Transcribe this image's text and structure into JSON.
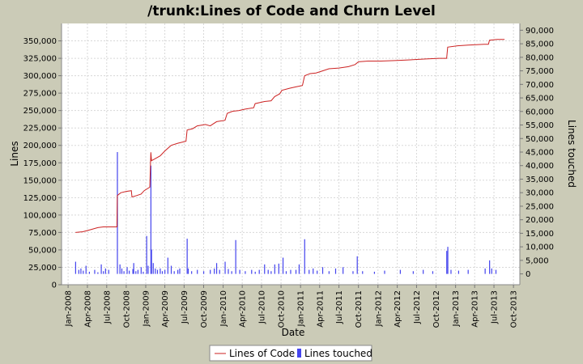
{
  "chart_data": {
    "type": "line",
    "title": "/trunk:Lines of Code and Churn Level",
    "xlabel": "Date",
    "ylabel": "Lines",
    "y2label": "Lines touched",
    "xlim": [
      "2007-12-01",
      "2013-10-31"
    ],
    "ylim": [
      0,
      375000
    ],
    "y2lim": [
      -4000,
      92500
    ],
    "x_ticks": [
      "Jan-2008",
      "Apr-2008",
      "Jul-2008",
      "Oct-2008",
      "Jan-2009",
      "Apr-2009",
      "Jul-2009",
      "Oct-2009",
      "Jan-2010",
      "Apr-2010",
      "Jul-2010",
      "Oct-2010",
      "Jan-2011",
      "Apr-2011",
      "Jul-2011",
      "Oct-2011",
      "Jan-2012",
      "Apr-2012",
      "Jul-2012",
      "Oct-2012",
      "Jan-2013",
      "Apr-2013",
      "Jul-2013",
      "Oct-2013"
    ],
    "y_ticks": [
      "0",
      "25,000",
      "50,000",
      "75,000",
      "100,000",
      "125,000",
      "150,000",
      "175,000",
      "200,000",
      "225,000",
      "250,000",
      "275,000",
      "300,000",
      "325,000",
      "350,000"
    ],
    "y2_ticks": [
      "0",
      "5,000",
      "10,000",
      "15,000",
      "20,000",
      "25,000",
      "30,000",
      "35,000",
      "40,000",
      "45,000",
      "50,000",
      "55,000",
      "60,000",
      "65,000",
      "70,000",
      "75,000",
      "80,000",
      "85,000",
      "90,000"
    ],
    "grid": true,
    "legend": "bottom",
    "series": [
      {
        "name": "Lines of Code",
        "axis": "left",
        "color": "#cc2222",
        "points": [
          [
            "2008-02-05",
            75000
          ],
          [
            "2008-03-10",
            76000
          ],
          [
            "2008-04-15",
            79000
          ],
          [
            "2008-05-20",
            82000
          ],
          [
            "2008-06-15",
            83000
          ],
          [
            "2008-07-15",
            83000
          ],
          [
            "2008-08-18",
            83000
          ],
          [
            "2008-08-20",
            128000
          ],
          [
            "2008-09-05",
            132000
          ],
          [
            "2008-10-01",
            134000
          ],
          [
            "2008-10-25",
            135000
          ],
          [
            "2008-10-28",
            126000
          ],
          [
            "2008-11-20",
            128000
          ],
          [
            "2008-12-10",
            130000
          ],
          [
            "2008-12-25",
            135000
          ],
          [
            "2009-01-20",
            140000
          ],
          [
            "2009-01-25",
            190000
          ],
          [
            "2009-01-28",
            178000
          ],
          [
            "2009-02-15",
            181000
          ],
          [
            "2009-03-10",
            185000
          ],
          [
            "2009-04-01",
            192000
          ],
          [
            "2009-05-01",
            200000
          ],
          [
            "2009-06-01",
            203000
          ],
          [
            "2009-07-10",
            206000
          ],
          [
            "2009-07-15",
            222000
          ],
          [
            "2009-08-10",
            224000
          ],
          [
            "2009-09-01",
            228000
          ],
          [
            "2009-10-10",
            230000
          ],
          [
            "2009-11-01",
            228000
          ],
          [
            "2009-12-01",
            234000
          ],
          [
            "2010-01-10",
            236000
          ],
          [
            "2010-01-20",
            246000
          ],
          [
            "2010-02-15",
            249000
          ],
          [
            "2010-03-15",
            250000
          ],
          [
            "2010-04-15",
            252000
          ],
          [
            "2010-05-25",
            254000
          ],
          [
            "2010-06-01",
            260000
          ],
          [
            "2010-07-15",
            263000
          ],
          [
            "2010-08-15",
            264000
          ],
          [
            "2010-09-01",
            270000
          ],
          [
            "2010-09-25",
            274000
          ],
          [
            "2010-10-05",
            279000
          ],
          [
            "2010-11-10",
            282000
          ],
          [
            "2010-12-10",
            284000
          ],
          [
            "2011-01-10",
            286000
          ],
          [
            "2011-01-20",
            300000
          ],
          [
            "2011-02-15",
            303000
          ],
          [
            "2011-03-15",
            304000
          ],
          [
            "2011-04-15",
            307000
          ],
          [
            "2011-05-15",
            310000
          ],
          [
            "2011-07-01",
            311000
          ],
          [
            "2011-08-15",
            313000
          ],
          [
            "2011-09-15",
            316000
          ],
          [
            "2011-10-01",
            320000
          ],
          [
            "2011-11-15",
            321000
          ],
          [
            "2012-01-15",
            321000
          ],
          [
            "2012-04-01",
            322000
          ],
          [
            "2012-06-15",
            323000
          ],
          [
            "2012-08-15",
            324000
          ],
          [
            "2012-10-15",
            325000
          ],
          [
            "2012-11-20",
            325000
          ],
          [
            "2012-11-25",
            341000
          ],
          [
            "2013-01-10",
            343000
          ],
          [
            "2013-03-01",
            344000
          ],
          [
            "2013-05-15",
            345000
          ],
          [
            "2013-06-05",
            345000
          ],
          [
            "2013-06-10",
            351000
          ],
          [
            "2013-07-15",
            352000
          ],
          [
            "2013-08-20",
            352000
          ]
        ]
      },
      {
        "name": "Lines touched",
        "axis": "right",
        "color": "#4444ee",
        "points": [
          [
            "2008-02-05",
            4500
          ],
          [
            "2008-02-20",
            1500
          ],
          [
            "2008-03-01",
            2000
          ],
          [
            "2008-03-12",
            1200
          ],
          [
            "2008-03-25",
            3000
          ],
          [
            "2008-04-10",
            800
          ],
          [
            "2008-05-05",
            1500
          ],
          [
            "2008-05-20",
            600
          ],
          [
            "2008-06-05",
            3500
          ],
          [
            "2008-06-15",
            1000
          ],
          [
            "2008-06-25",
            2000
          ],
          [
            "2008-07-10",
            1500
          ],
          [
            "2008-08-20",
            45000
          ],
          [
            "2008-09-01",
            3500
          ],
          [
            "2008-09-10",
            2000
          ],
          [
            "2008-09-20",
            1000
          ],
          [
            "2008-10-05",
            2500
          ],
          [
            "2008-10-15",
            1200
          ],
          [
            "2008-11-01",
            1800
          ],
          [
            "2008-11-05",
            4000
          ],
          [
            "2008-11-15",
            1000
          ],
          [
            "2008-11-25",
            1500
          ],
          [
            "2008-12-10",
            2500
          ],
          [
            "2008-12-20",
            800
          ],
          [
            "2009-01-05",
            14000
          ],
          [
            "2009-01-12",
            3000
          ],
          [
            "2009-01-25",
            40000
          ],
          [
            "2009-01-28",
            9000
          ],
          [
            "2009-02-05",
            4000
          ],
          [
            "2009-02-15",
            2000
          ],
          [
            "2009-02-25",
            1500
          ],
          [
            "2009-03-10",
            2000
          ],
          [
            "2009-03-20",
            1000
          ],
          [
            "2009-04-01",
            1500
          ],
          [
            "2009-04-15",
            6000
          ],
          [
            "2009-05-01",
            3000
          ],
          [
            "2009-05-15",
            1000
          ],
          [
            "2009-06-01",
            1500
          ],
          [
            "2009-06-10",
            2000
          ],
          [
            "2009-07-15",
            13000
          ],
          [
            "2009-07-20",
            2000
          ],
          [
            "2009-08-05",
            1000
          ],
          [
            "2009-09-01",
            1500
          ],
          [
            "2009-10-01",
            1000
          ],
          [
            "2009-11-01",
            1500
          ],
          [
            "2009-11-20",
            2000
          ],
          [
            "2009-12-01",
            4000
          ],
          [
            "2009-12-15",
            1500
          ],
          [
            "2010-01-10",
            4500
          ],
          [
            "2010-01-25",
            1800
          ],
          [
            "2010-02-10",
            1000
          ],
          [
            "2010-03-01",
            12500
          ],
          [
            "2010-03-20",
            1500
          ],
          [
            "2010-04-15",
            1000
          ],
          [
            "2010-05-15",
            1500
          ],
          [
            "2010-06-01",
            800
          ],
          [
            "2010-06-20",
            1500
          ],
          [
            "2010-07-15",
            3500
          ],
          [
            "2010-08-01",
            1500
          ],
          [
            "2010-08-15",
            1000
          ],
          [
            "2010-09-01",
            3500
          ],
          [
            "2010-09-20",
            3800
          ],
          [
            "2010-10-10",
            6000
          ],
          [
            "2010-10-25",
            1000
          ],
          [
            "2010-11-15",
            1500
          ],
          [
            "2010-12-10",
            1500
          ],
          [
            "2010-12-25",
            3500
          ],
          [
            "2011-01-20",
            12800
          ],
          [
            "2011-02-10",
            1500
          ],
          [
            "2011-03-01",
            2000
          ],
          [
            "2011-03-20",
            1200
          ],
          [
            "2011-04-15",
            2500
          ],
          [
            "2011-05-15",
            1000
          ],
          [
            "2011-06-15",
            2000
          ],
          [
            "2011-07-20",
            2500
          ],
          [
            "2011-09-05",
            1000
          ],
          [
            "2011-09-25",
            6500
          ],
          [
            "2011-10-20",
            1000
          ],
          [
            "2011-12-15",
            800
          ],
          [
            "2012-02-01",
            1200
          ],
          [
            "2012-04-15",
            1500
          ],
          [
            "2012-06-15",
            1000
          ],
          [
            "2012-08-01",
            1500
          ],
          [
            "2012-09-15",
            1000
          ],
          [
            "2012-11-20",
            8500
          ],
          [
            "2012-11-25",
            10000
          ],
          [
            "2012-12-10",
            1500
          ],
          [
            "2013-01-15",
            1200
          ],
          [
            "2013-03-01",
            1500
          ],
          [
            "2013-05-20",
            2000
          ],
          [
            "2013-06-10",
            5000
          ],
          [
            "2013-06-20",
            2000
          ],
          [
            "2013-07-10",
            1500
          ]
        ]
      }
    ]
  }
}
